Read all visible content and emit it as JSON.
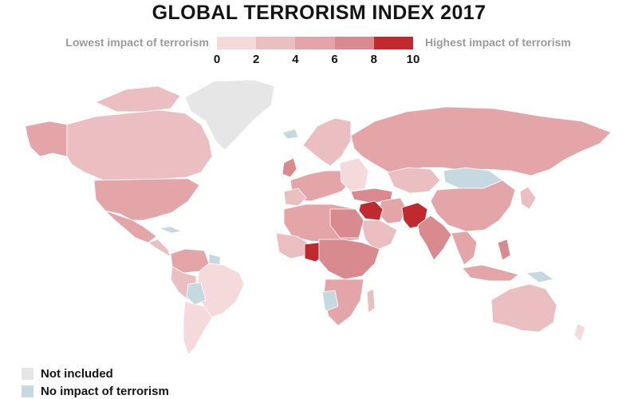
{
  "title": "GLOBAL TERRORISM INDEX 2017",
  "legend": {
    "low_label": "Lowest impact of terrorism",
    "high_label": "Highest impact of terrorism",
    "ticks": [
      "0",
      "2",
      "4",
      "6",
      "8",
      "10"
    ],
    "bins": [
      {
        "from": 0,
        "to": 2,
        "color": "#f4dadb"
      },
      {
        "from": 2,
        "to": 4,
        "color": "#ebbfc1"
      },
      {
        "from": 4,
        "to": 6,
        "color": "#e3a5a8"
      },
      {
        "from": 6,
        "to": 8,
        "color": "#d98a8e"
      },
      {
        "from": 8,
        "to": 10,
        "color": "#bf2a2e"
      }
    ]
  },
  "key": [
    {
      "label": "Not included",
      "color": "#e6e6e6"
    },
    {
      "label": "No impact of terrorism",
      "color": "#c6d9e1"
    }
  ],
  "colors": {
    "not_included": "#e6e6e6",
    "no_impact": "#c6d9e1",
    "score_0_2": "#f4dadb",
    "score_2_4": "#ebbfc1",
    "score_4_6": "#e3a5a8",
    "score_6_8": "#d98a8e",
    "score_8_10": "#bf2a2e"
  }
}
